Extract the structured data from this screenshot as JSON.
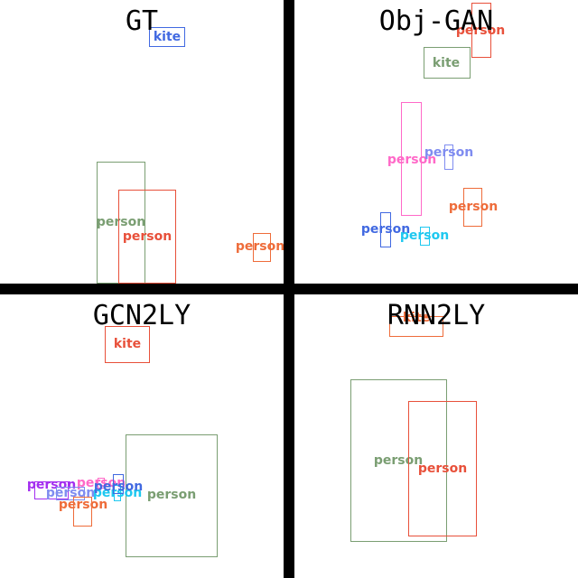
{
  "panels": [
    {
      "title": "GT",
      "boxes": [
        {
          "label": "kite",
          "color": "#4169e1"
        },
        {
          "label": "person",
          "color": "#7a9e72"
        },
        {
          "label": "person",
          "color": "#e8503a"
        },
        {
          "label": "person",
          "color": "#ee6c3a"
        }
      ]
    },
    {
      "title": "Obj-GAN",
      "boxes": [
        {
          "label": "person",
          "color": "#e8503a"
        },
        {
          "label": "kite",
          "color": "#7a9e72"
        },
        {
          "label": "person",
          "color": "#ff69c8"
        },
        {
          "label": "person",
          "color": "#7f8cf0"
        },
        {
          "label": "person",
          "color": "#ee6c3a"
        },
        {
          "label": "person",
          "color": "#4169e1"
        },
        {
          "label": "person",
          "color": "#1ec8f0"
        }
      ]
    },
    {
      "title": "GCN2LY",
      "boxes": [
        {
          "label": "kite",
          "color": "#e8503a"
        },
        {
          "label": "person",
          "color": "#7a9e72"
        },
        {
          "label": "person",
          "color": "#a42ef0"
        },
        {
          "label": "person",
          "color": "#ff69c8"
        },
        {
          "label": "person",
          "color": "#7f8cf0"
        },
        {
          "label": "person",
          "color": "#1ec8f0"
        },
        {
          "label": "person",
          "color": "#4169e1"
        },
        {
          "label": "person",
          "color": "#ee6c3a"
        }
      ]
    },
    {
      "title": "RNN2LY",
      "boxes": [
        {
          "label": "kite",
          "color": "#ee6c3a"
        },
        {
          "label": "person",
          "color": "#7a9e72"
        },
        {
          "label": "person",
          "color": "#e8503a"
        }
      ]
    }
  ]
}
